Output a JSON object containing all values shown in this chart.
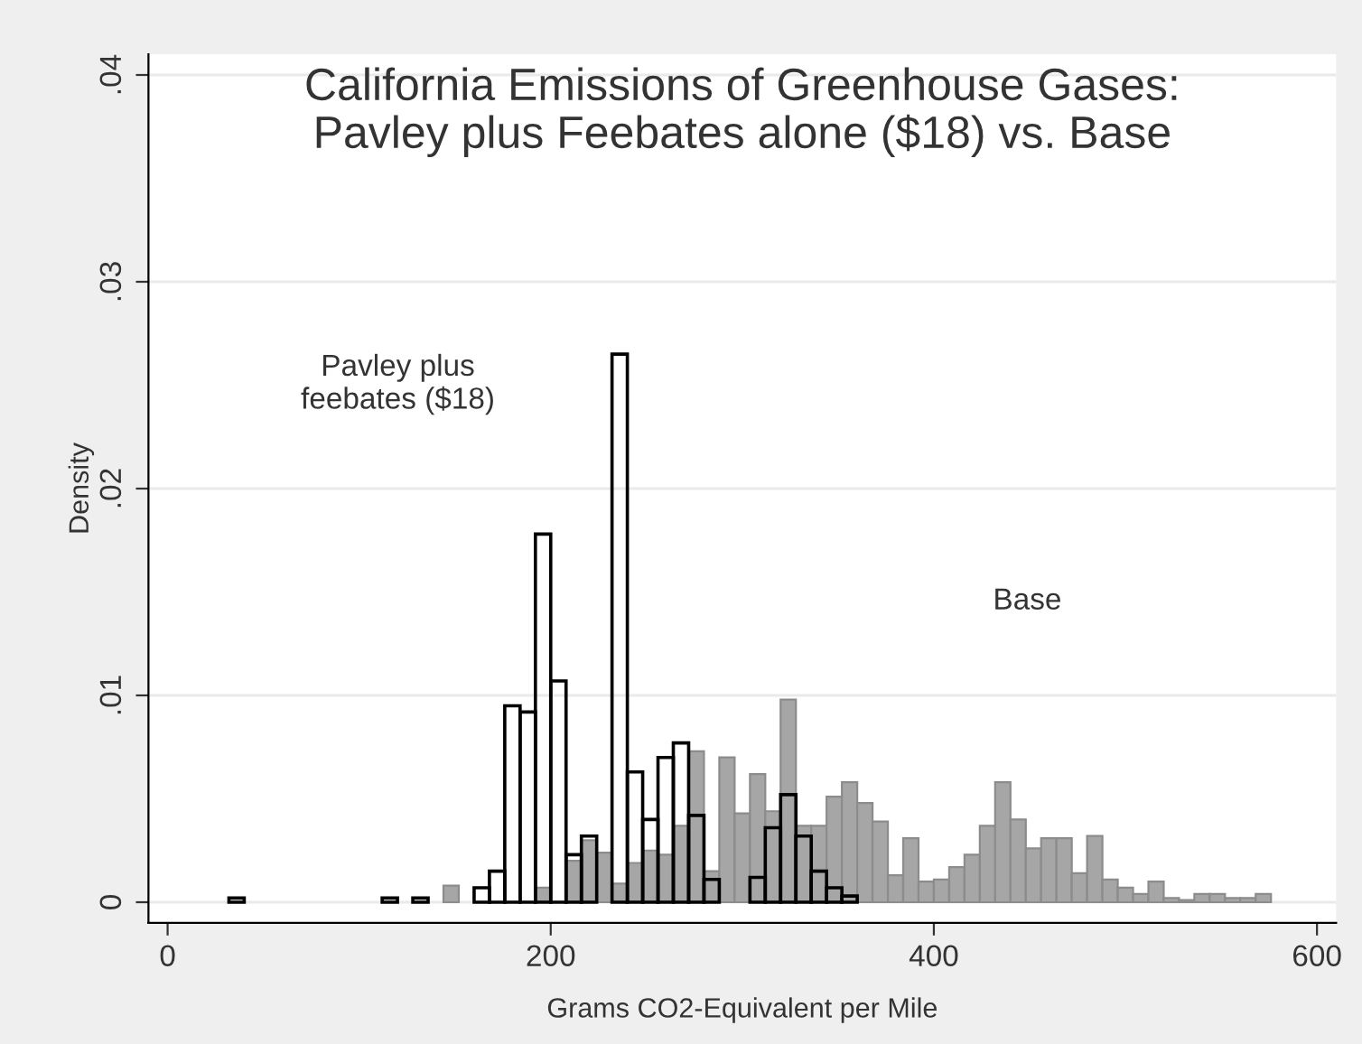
{
  "chart_data": {
    "type": "histogram",
    "title": "California Emissions of Greenhouse Gases:\nPavley plus Feebates alone ($18) vs. Base",
    "xlabel": "Grams CO2-Equivalent per Mile",
    "ylabel": "Density",
    "bins": [
      32,
      40,
      48,
      56,
      64,
      72,
      80,
      88,
      96,
      104,
      112,
      120,
      128,
      136,
      144,
      152,
      160,
      168,
      176,
      184,
      192,
      200,
      208,
      216,
      224,
      232,
      240,
      248,
      256,
      264,
      272,
      280,
      288,
      296,
      304,
      312,
      320,
      328,
      336,
      344,
      352,
      360,
      368,
      376,
      384,
      392,
      400,
      408,
      416,
      424,
      432,
      440,
      448,
      456,
      464,
      472,
      480,
      488,
      496,
      504,
      512,
      520,
      528,
      536,
      544,
      552,
      560,
      568,
      576
    ],
    "series": [
      {
        "color": "#a6a6a6",
        "values": [
          null,
          null,
          null,
          null,
          null,
          null,
          null,
          null,
          null,
          null,
          null,
          null,
          null,
          null,
          0.0008,
          null,
          null,
          null,
          null,
          null,
          0.0007,
          null,
          0.002,
          0.003,
          0.0024,
          0.0009,
          0.0019,
          0.0025,
          0.0023,
          0.0037,
          0.0073,
          0.0015,
          0.007,
          0.0043,
          0.0062,
          0.0044,
          0.0098,
          0.0037,
          0.0037,
          0.0051,
          0.0058,
          0.0048,
          0.0039,
          0.0013,
          0.0031,
          0.001,
          0.0011,
          0.0017,
          0.0023,
          0.0037,
          0.0058,
          0.004,
          0.0026,
          0.0031,
          0.0031,
          0.0014,
          0.0032,
          0.0011,
          0.0007,
          0.0004,
          0.001,
          0.0002,
          0.0001,
          0.0004,
          0.0004,
          0.0002,
          0.0002,
          0.0004
        ]
      },
      {
        "color": "#000000",
        "values": [
          0.0002,
          null,
          null,
          null,
          null,
          null,
          null,
          null,
          null,
          null,
          0.0002,
          null,
          0.0002,
          null,
          null,
          null,
          0.0007,
          0.0015,
          0.0095,
          0.0092,
          0.0178,
          0.0107,
          0.0023,
          0.0032,
          null,
          0.0265,
          0.0063,
          0.004,
          0.007,
          0.0077,
          0.0042,
          0.0011,
          null,
          null,
          0.0012,
          0.0036,
          0.0052,
          0.0032,
          0.0015,
          0.0007,
          0.0003,
          null,
          null,
          null,
          null,
          null,
          null,
          null,
          null,
          null,
          null,
          null,
          null,
          null,
          null,
          null,
          null,
          null,
          null,
          null,
          null,
          null,
          null,
          null,
          null,
          null,
          null,
          null
        ]
      }
    ],
    "xlim": [
      -10,
      610
    ],
    "xticks": [
      0,
      200,
      400,
      600
    ],
    "ylim": [
      -0.001,
      0.041
    ],
    "yticks": [
      0,
      {
        "value": 0.01,
        "label": ".01"
      },
      {
        "value": 0.02,
        "label": ".02"
      },
      {
        "value": 0.03,
        "label": ".03"
      },
      {
        "value": 0.04,
        "label": ".04"
      }
    ],
    "annotations": [
      "Pavley plus\nfeebates ($18)",
      "Base"
    ],
    "grid": "y"
  }
}
